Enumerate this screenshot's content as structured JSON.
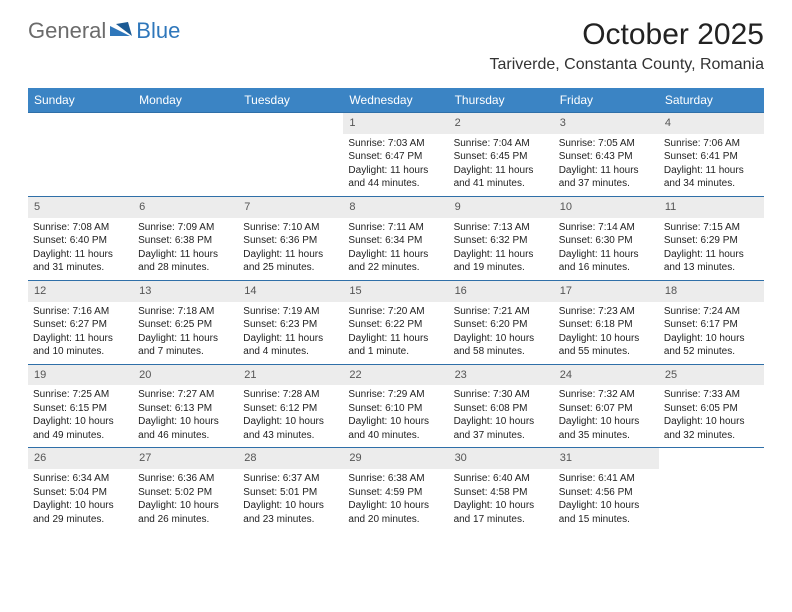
{
  "logo": {
    "text1": "General",
    "text2": "Blue"
  },
  "title": "October 2025",
  "location": "Tariverde, Constanta County, Romania",
  "header_color": "#3b84c4",
  "border_color": "#2f6fa8",
  "daynum_bg": "#ececec",
  "days_of_week": [
    "Sunday",
    "Monday",
    "Tuesday",
    "Wednesday",
    "Thursday",
    "Friday",
    "Saturday"
  ],
  "weeks": [
    [
      null,
      null,
      null,
      {
        "n": "1",
        "sr": "Sunrise: 7:03 AM",
        "ss": "Sunset: 6:47 PM",
        "d1": "Daylight: 11 hours",
        "d2": "and 44 minutes."
      },
      {
        "n": "2",
        "sr": "Sunrise: 7:04 AM",
        "ss": "Sunset: 6:45 PM",
        "d1": "Daylight: 11 hours",
        "d2": "and 41 minutes."
      },
      {
        "n": "3",
        "sr": "Sunrise: 7:05 AM",
        "ss": "Sunset: 6:43 PM",
        "d1": "Daylight: 11 hours",
        "d2": "and 37 minutes."
      },
      {
        "n": "4",
        "sr": "Sunrise: 7:06 AM",
        "ss": "Sunset: 6:41 PM",
        "d1": "Daylight: 11 hours",
        "d2": "and 34 minutes."
      }
    ],
    [
      {
        "n": "5",
        "sr": "Sunrise: 7:08 AM",
        "ss": "Sunset: 6:40 PM",
        "d1": "Daylight: 11 hours",
        "d2": "and 31 minutes."
      },
      {
        "n": "6",
        "sr": "Sunrise: 7:09 AM",
        "ss": "Sunset: 6:38 PM",
        "d1": "Daylight: 11 hours",
        "d2": "and 28 minutes."
      },
      {
        "n": "7",
        "sr": "Sunrise: 7:10 AM",
        "ss": "Sunset: 6:36 PM",
        "d1": "Daylight: 11 hours",
        "d2": "and 25 minutes."
      },
      {
        "n": "8",
        "sr": "Sunrise: 7:11 AM",
        "ss": "Sunset: 6:34 PM",
        "d1": "Daylight: 11 hours",
        "d2": "and 22 minutes."
      },
      {
        "n": "9",
        "sr": "Sunrise: 7:13 AM",
        "ss": "Sunset: 6:32 PM",
        "d1": "Daylight: 11 hours",
        "d2": "and 19 minutes."
      },
      {
        "n": "10",
        "sr": "Sunrise: 7:14 AM",
        "ss": "Sunset: 6:30 PM",
        "d1": "Daylight: 11 hours",
        "d2": "and 16 minutes."
      },
      {
        "n": "11",
        "sr": "Sunrise: 7:15 AM",
        "ss": "Sunset: 6:29 PM",
        "d1": "Daylight: 11 hours",
        "d2": "and 13 minutes."
      }
    ],
    [
      {
        "n": "12",
        "sr": "Sunrise: 7:16 AM",
        "ss": "Sunset: 6:27 PM",
        "d1": "Daylight: 11 hours",
        "d2": "and 10 minutes."
      },
      {
        "n": "13",
        "sr": "Sunrise: 7:18 AM",
        "ss": "Sunset: 6:25 PM",
        "d1": "Daylight: 11 hours",
        "d2": "and 7 minutes."
      },
      {
        "n": "14",
        "sr": "Sunrise: 7:19 AM",
        "ss": "Sunset: 6:23 PM",
        "d1": "Daylight: 11 hours",
        "d2": "and 4 minutes."
      },
      {
        "n": "15",
        "sr": "Sunrise: 7:20 AM",
        "ss": "Sunset: 6:22 PM",
        "d1": "Daylight: 11 hours",
        "d2": "and 1 minute."
      },
      {
        "n": "16",
        "sr": "Sunrise: 7:21 AM",
        "ss": "Sunset: 6:20 PM",
        "d1": "Daylight: 10 hours",
        "d2": "and 58 minutes."
      },
      {
        "n": "17",
        "sr": "Sunrise: 7:23 AM",
        "ss": "Sunset: 6:18 PM",
        "d1": "Daylight: 10 hours",
        "d2": "and 55 minutes."
      },
      {
        "n": "18",
        "sr": "Sunrise: 7:24 AM",
        "ss": "Sunset: 6:17 PM",
        "d1": "Daylight: 10 hours",
        "d2": "and 52 minutes."
      }
    ],
    [
      {
        "n": "19",
        "sr": "Sunrise: 7:25 AM",
        "ss": "Sunset: 6:15 PM",
        "d1": "Daylight: 10 hours",
        "d2": "and 49 minutes."
      },
      {
        "n": "20",
        "sr": "Sunrise: 7:27 AM",
        "ss": "Sunset: 6:13 PM",
        "d1": "Daylight: 10 hours",
        "d2": "and 46 minutes."
      },
      {
        "n": "21",
        "sr": "Sunrise: 7:28 AM",
        "ss": "Sunset: 6:12 PM",
        "d1": "Daylight: 10 hours",
        "d2": "and 43 minutes."
      },
      {
        "n": "22",
        "sr": "Sunrise: 7:29 AM",
        "ss": "Sunset: 6:10 PM",
        "d1": "Daylight: 10 hours",
        "d2": "and 40 minutes."
      },
      {
        "n": "23",
        "sr": "Sunrise: 7:30 AM",
        "ss": "Sunset: 6:08 PM",
        "d1": "Daylight: 10 hours",
        "d2": "and 37 minutes."
      },
      {
        "n": "24",
        "sr": "Sunrise: 7:32 AM",
        "ss": "Sunset: 6:07 PM",
        "d1": "Daylight: 10 hours",
        "d2": "and 35 minutes."
      },
      {
        "n": "25",
        "sr": "Sunrise: 7:33 AM",
        "ss": "Sunset: 6:05 PM",
        "d1": "Daylight: 10 hours",
        "d2": "and 32 minutes."
      }
    ],
    [
      {
        "n": "26",
        "sr": "Sunrise: 6:34 AM",
        "ss": "Sunset: 5:04 PM",
        "d1": "Daylight: 10 hours",
        "d2": "and 29 minutes."
      },
      {
        "n": "27",
        "sr": "Sunrise: 6:36 AM",
        "ss": "Sunset: 5:02 PM",
        "d1": "Daylight: 10 hours",
        "d2": "and 26 minutes."
      },
      {
        "n": "28",
        "sr": "Sunrise: 6:37 AM",
        "ss": "Sunset: 5:01 PM",
        "d1": "Daylight: 10 hours",
        "d2": "and 23 minutes."
      },
      {
        "n": "29",
        "sr": "Sunrise: 6:38 AM",
        "ss": "Sunset: 4:59 PM",
        "d1": "Daylight: 10 hours",
        "d2": "and 20 minutes."
      },
      {
        "n": "30",
        "sr": "Sunrise: 6:40 AM",
        "ss": "Sunset: 4:58 PM",
        "d1": "Daylight: 10 hours",
        "d2": "and 17 minutes."
      },
      {
        "n": "31",
        "sr": "Sunrise: 6:41 AM",
        "ss": "Sunset: 4:56 PM",
        "d1": "Daylight: 10 hours",
        "d2": "and 15 minutes."
      },
      null
    ]
  ]
}
